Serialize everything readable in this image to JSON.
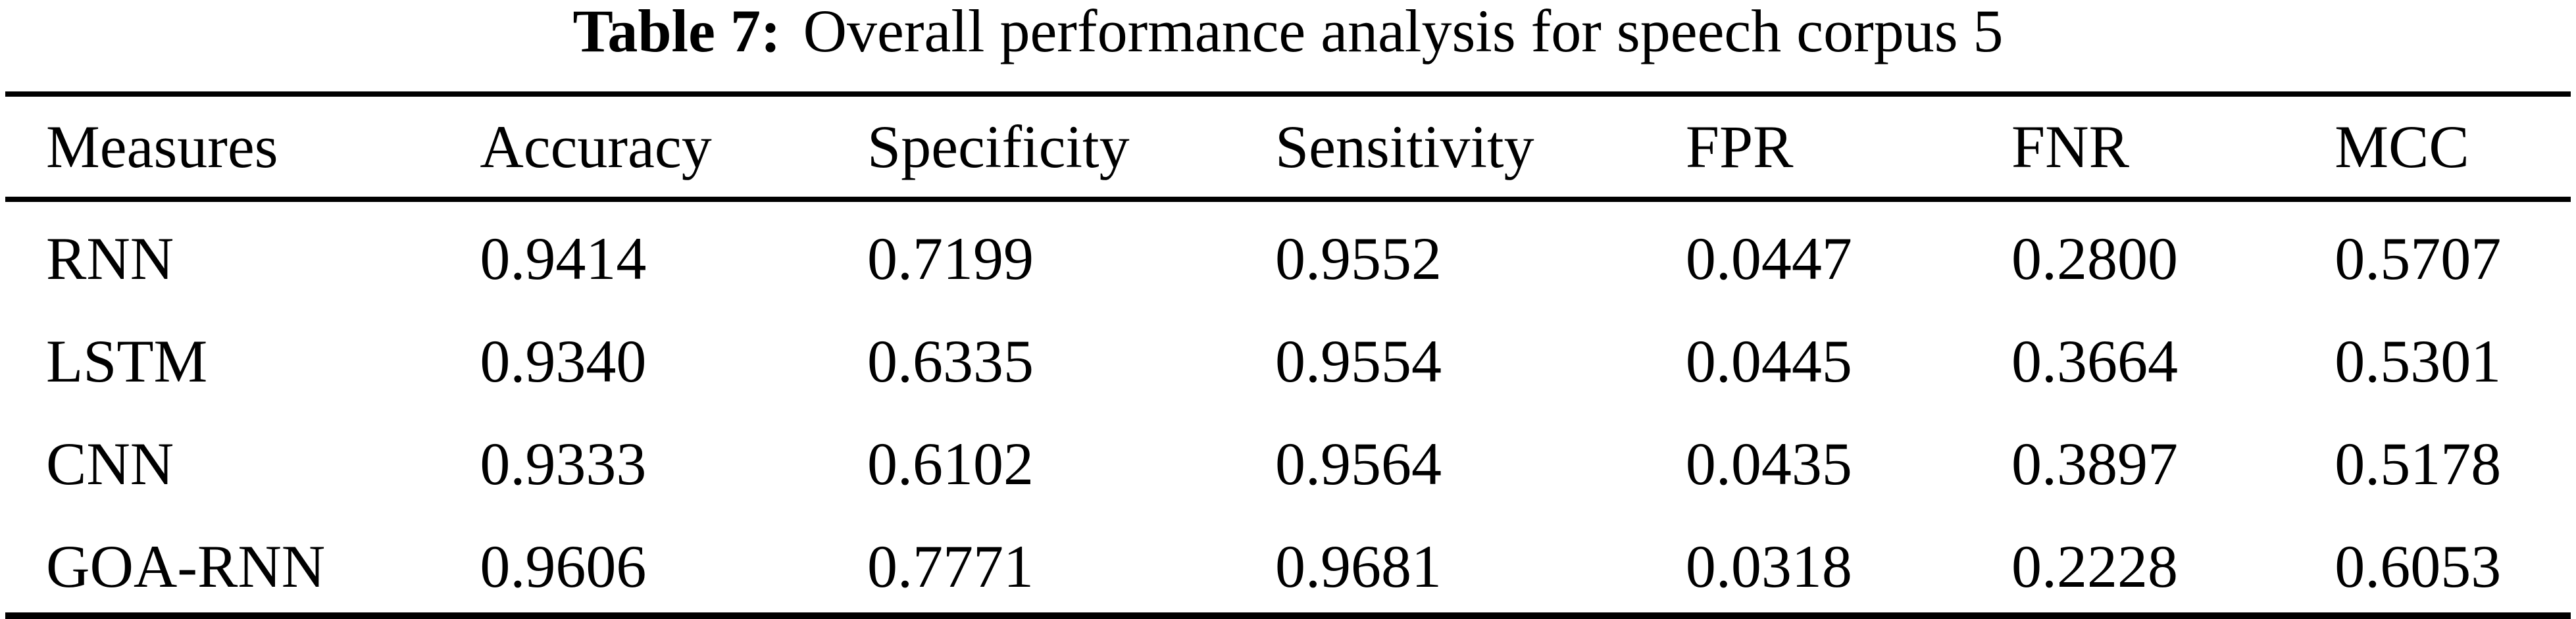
{
  "caption": {
    "label": "Table 7:",
    "text": "Overall performance analysis for speech corpus 5"
  },
  "table": {
    "columns": [
      "Measures",
      "Accuracy",
      "Specificity",
      "Sensitivity",
      "FPR",
      "FNR",
      "MCC"
    ],
    "rows": [
      [
        "RNN",
        "0.9414",
        "0.7199",
        "0.9552",
        "0.0447",
        "0.2800",
        "0.5707"
      ],
      [
        "LSTM",
        "0.9340",
        "0.6335",
        "0.9554",
        "0.0445",
        "0.3664",
        "0.5301"
      ],
      [
        "CNN",
        "0.9333",
        "0.6102",
        "0.9564",
        "0.0435",
        "0.3897",
        "0.5178"
      ],
      [
        "GOA-RNN",
        "0.9606",
        "0.7771",
        "0.9681",
        "0.0318",
        "0.2228",
        "0.6053"
      ]
    ]
  },
  "chart_data": {
    "type": "table",
    "title": "Table 7: Overall performance analysis for speech corpus 5",
    "categories": [
      "RNN",
      "LSTM",
      "CNN",
      "GOA-RNN"
    ],
    "series": [
      {
        "name": "Accuracy",
        "values": [
          0.9414,
          0.934,
          0.9333,
          0.9606
        ]
      },
      {
        "name": "Specificity",
        "values": [
          0.7199,
          0.6335,
          0.6102,
          0.7771
        ]
      },
      {
        "name": "Sensitivity",
        "values": [
          0.9552,
          0.9554,
          0.9564,
          0.9681
        ]
      },
      {
        "name": "FPR",
        "values": [
          0.0447,
          0.0445,
          0.0435,
          0.0318
        ]
      },
      {
        "name": "FNR",
        "values": [
          0.28,
          0.3664,
          0.3897,
          0.2228
        ]
      },
      {
        "name": "MCC",
        "values": [
          0.5707,
          0.5301,
          0.5178,
          0.6053
        ]
      }
    ]
  },
  "colors": {
    "text": "#000000",
    "background": "#ffffff",
    "rule": "#000000"
  }
}
